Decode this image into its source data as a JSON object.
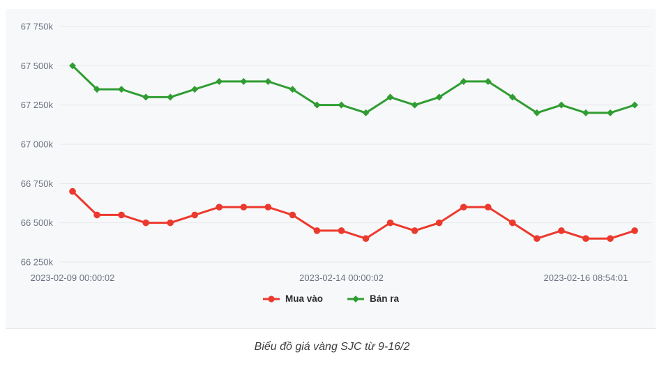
{
  "caption": "Biểu đồ giá vàng SJC từ 9-16/2",
  "colors": {
    "buy_red": "#ec392d",
    "sell_green": "#2f9d32",
    "grid": "#e6e7e9",
    "card_bg": "#f7f8fa",
    "tick_text": "#6b7280"
  },
  "legend": {
    "items": [
      {
        "label": "Mua vào",
        "color": "#ec392d",
        "marker": "circle"
      },
      {
        "label": "Bán ra",
        "color": "#2f9d32",
        "marker": "diamond"
      }
    ]
  },
  "chart_data": {
    "type": "line",
    "title": "",
    "xlabel": "",
    "ylabel": "",
    "grid": "horizontal",
    "legend_position": "bottom",
    "ylim": [
      66250,
      67750
    ],
    "y_ticks": [
      {
        "value": 67750,
        "label": "67 750k"
      },
      {
        "value": 67500,
        "label": "67 500k"
      },
      {
        "value": 67250,
        "label": "67 250k"
      },
      {
        "value": 67000,
        "label": "67 000k"
      },
      {
        "value": 66750,
        "label": "66 750k"
      },
      {
        "value": 66500,
        "label": "66 500k"
      },
      {
        "value": 66250,
        "label": "66 250k"
      }
    ],
    "x_tick_labels": [
      {
        "index": 0,
        "label": "2023-02-09 00:00:02"
      },
      {
        "index": 11,
        "label": "2023-02-14 00:00:02"
      },
      {
        "index": 21,
        "label": "2023-02-16 08:54:01"
      }
    ],
    "series": [
      {
        "name": "Mua vào",
        "color": "#ec392d",
        "marker": "circle",
        "values": [
          66700,
          66550,
          66550,
          66500,
          66500,
          66550,
          66600,
          66600,
          66600,
          66550,
          66450,
          66450,
          66400,
          66500,
          66450,
          66500,
          66600,
          66600,
          66500,
          66400,
          66450,
          66400,
          66400,
          66450
        ]
      },
      {
        "name": "Bán ra",
        "color": "#2f9d32",
        "marker": "diamond",
        "values": [
          67500,
          67350,
          67350,
          67300,
          67300,
          67350,
          67400,
          67400,
          67400,
          67350,
          67250,
          67250,
          67200,
          67300,
          67250,
          67300,
          67400,
          67400,
          67300,
          67200,
          67250,
          67200,
          67200,
          67250
        ]
      }
    ]
  }
}
